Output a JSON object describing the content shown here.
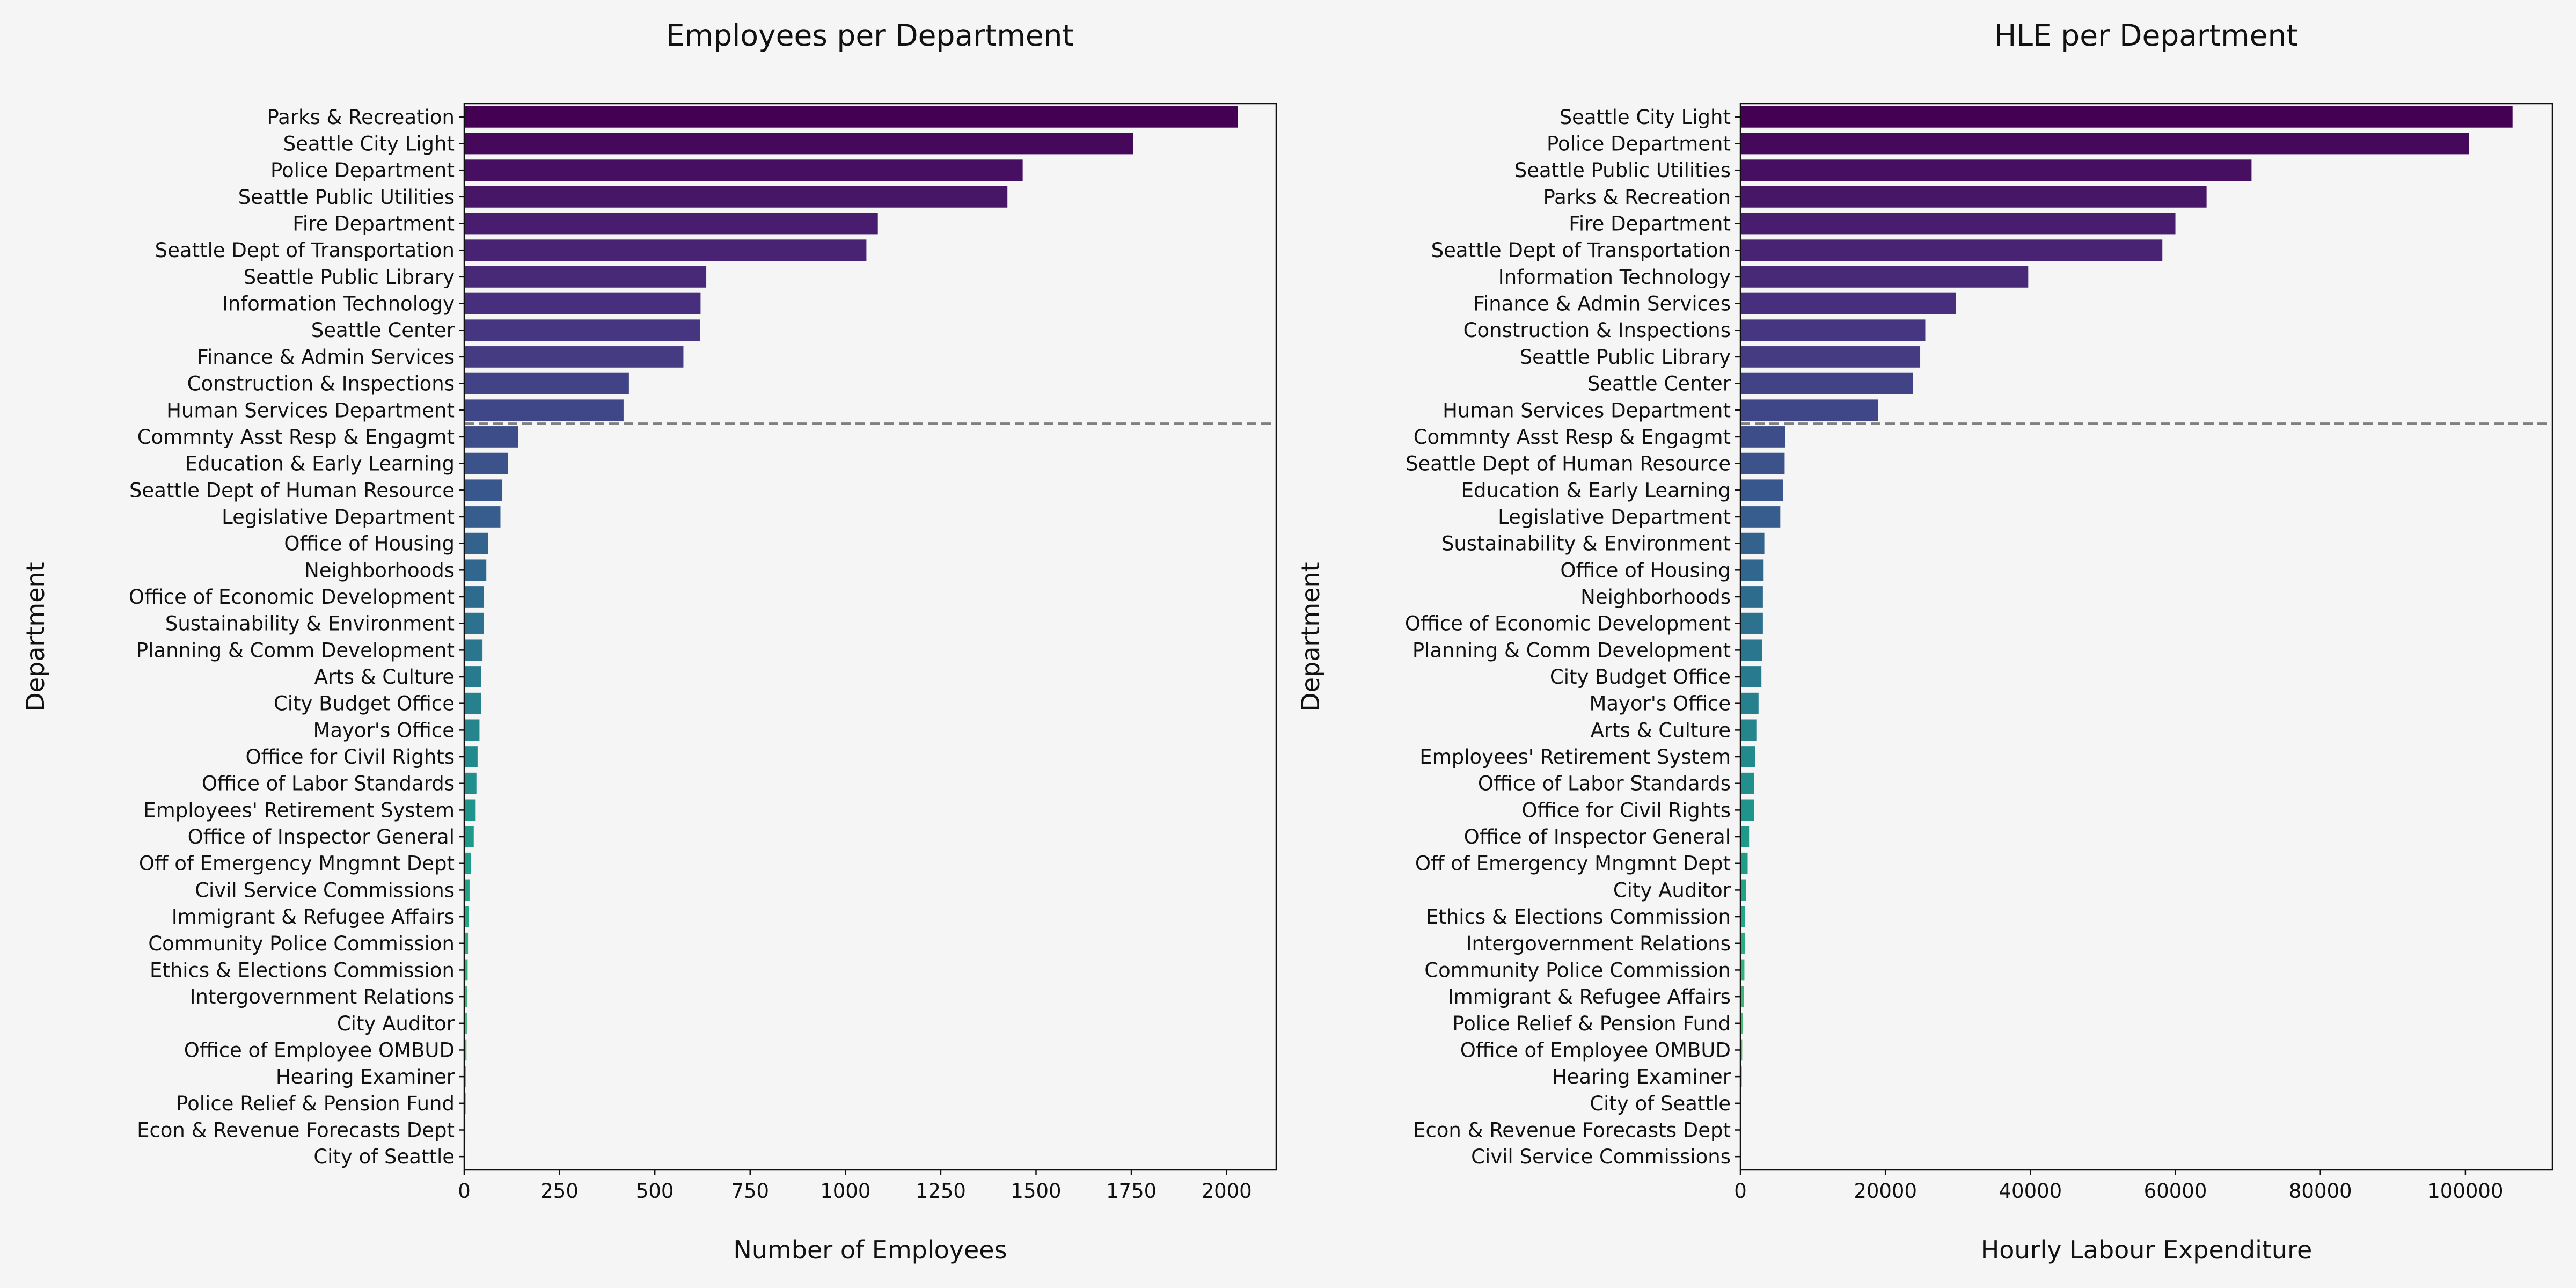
{
  "chart_data": [
    {
      "type": "bar",
      "orientation": "horizontal",
      "title": "Employees per Department",
      "xlabel": "Number of Employees",
      "ylabel": "Department",
      "xlim": [
        0,
        2130
      ],
      "xticks": [
        0,
        250,
        500,
        750,
        1000,
        1250,
        1500,
        1750,
        2000
      ],
      "xtick_labels": [
        "0",
        "250",
        "500",
        "750",
        "1000",
        "1250",
        "1500",
        "1750",
        "2000"
      ],
      "grid": false,
      "separator_after_index": 11,
      "categories": [
        "Parks & Recreation",
        "Seattle City Light",
        "Police Department",
        "Seattle Public Utilities",
        "Fire Department",
        "Seattle Dept of Transportation",
        "Seattle Public Library",
        "Information Technology",
        "Seattle Center",
        "Finance & Admin Services",
        "Construction & Inspections",
        "Human Services Department",
        "Commnty Asst Resp & Engagmt",
        "Education & Early Learning",
        "Seattle Dept of Human Resource",
        "Legislative Department",
        "Office of Housing",
        "Neighborhoods",
        "Office of Economic Development",
        "Sustainability & Environment",
        "Planning & Comm Development",
        "Arts & Culture",
        "City Budget Office",
        "Mayor's Office",
        "Office for Civil Rights",
        "Office of Labor Standards",
        "Employees' Retirement System",
        "Office of Inspector General",
        "Off of Emergency Mngmnt Dept",
        "Civil Service Commissions",
        "Immigrant & Refugee Affairs",
        "Community Police Commission",
        "Ethics & Elections Commission",
        "Intergovernment Relations",
        "City Auditor",
        "Office of Employee OMBUD",
        "Hearing Examiner",
        "Police Relief & Pension Fund",
        "Econ & Revenue Forecasts Dept",
        "City of Seattle"
      ],
      "values": [
        2030,
        1755,
        1465,
        1425,
        1085,
        1055,
        635,
        620,
        618,
        575,
        432,
        418,
        142,
        115,
        100,
        95,
        62,
        58,
        52,
        52,
        48,
        45,
        45,
        40,
        35,
        32,
        30,
        25,
        18,
        14,
        12,
        10,
        9,
        8,
        7,
        6,
        5,
        4,
        3,
        2
      ]
    },
    {
      "type": "bar",
      "orientation": "horizontal",
      "title": "HLE per Department",
      "xlabel": "Hourly Labour Expenditure",
      "ylabel": "Department",
      "xlim": [
        0,
        112000
      ],
      "xticks": [
        0,
        20000,
        40000,
        60000,
        80000,
        100000
      ],
      "xtick_labels": [
        "0",
        "20000",
        "40000",
        "60000",
        "80000",
        "100000"
      ],
      "grid": false,
      "separator_after_index": 11,
      "categories": [
        "Seattle City Light",
        "Police Department",
        "Seattle Public Utilities",
        "Parks & Recreation",
        "Fire Department",
        "Seattle Dept of Transportation",
        "Information Technology",
        "Finance & Admin Services",
        "Construction & Inspections",
        "Seattle Public Library",
        "Seattle Center",
        "Human Services Department",
        "Commnty Asst Resp & Engagmt",
        "Seattle Dept of Human Resource",
        "Education & Early Learning",
        "Legislative Department",
        "Sustainability & Environment",
        "Office of Housing",
        "Neighborhoods",
        "Office of Economic Development",
        "Planning & Comm Development",
        "City Budget Office",
        "Mayor's Office",
        "Arts & Culture",
        "Employees' Retirement System",
        "Office of Labor Standards",
        "Office for Civil Rights",
        "Office of Inspector General",
        "Off of Emergency Mngmnt Dept",
        "City Auditor",
        "Ethics & Elections Commission",
        "Intergovernment Relations",
        "Community Police Commission",
        "Immigrant & Refugee Affairs",
        "Police Relief & Pension Fund",
        "Office of Employee OMBUD",
        "Hearing Examiner",
        "City of Seattle",
        "Econ & Revenue Forecasts Dept",
        "Civil Service Commissions"
      ],
      "values": [
        106500,
        100500,
        70500,
        64300,
        60000,
        58200,
        39700,
        29700,
        25500,
        24800,
        23800,
        19000,
        6200,
        6100,
        5900,
        5500,
        3300,
        3200,
        3100,
        3100,
        3000,
        2900,
        2500,
        2200,
        2000,
        1900,
        1900,
        1200,
        1000,
        800,
        650,
        600,
        550,
        500,
        300,
        250,
        200,
        150,
        100,
        80
      ]
    }
  ]
}
